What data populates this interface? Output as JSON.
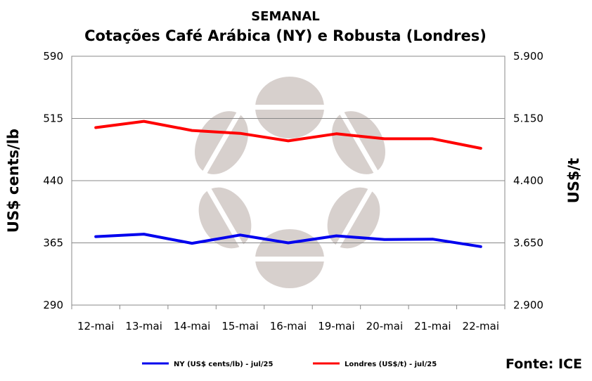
{
  "chart_data": {
    "type": "line",
    "title": "SEMANAL",
    "subtitle": "Cotações Café Arábica (NY) e Robusta (Londres)",
    "categories": [
      "12-mai",
      "13-mai",
      "14-mai",
      "15-mai",
      "16-mai",
      "19-mai",
      "20-mai",
      "21-mai",
      "22-mai"
    ],
    "y_left": {
      "label": "US$ cents/lb",
      "ylim": [
        290,
        590
      ],
      "ticks": [
        "290",
        "365",
        "440",
        "515",
        "590"
      ],
      "tick_values": [
        290,
        365,
        440,
        515,
        590
      ]
    },
    "y_right": {
      "label": "US$/t",
      "ylim": [
        2900,
        5900
      ],
      "ticks": [
        "2.900",
        "3.650",
        "4.400",
        "5.150",
        "5.900"
      ],
      "tick_values": [
        2900,
        3650,
        4400,
        5150,
        5900
      ]
    },
    "series": [
      {
        "name": "NY (US$ cents/lb) - jul/25",
        "axis": "left",
        "color": "#0000ee",
        "values": [
          372.5,
          375.5,
          364.5,
          374.5,
          365.0,
          373.5,
          369.0,
          369.5,
          360.5
        ]
      },
      {
        "name": "Londres (US$/t) - jul/25",
        "axis": "right",
        "color": "#ff0000",
        "values": [
          5040,
          5115,
          5005,
          4970,
          4880,
          4965,
          4905,
          4905,
          4790
        ]
      }
    ],
    "grid": "horizontal",
    "legend": "bottom",
    "source": "Fonte: ICE"
  }
}
